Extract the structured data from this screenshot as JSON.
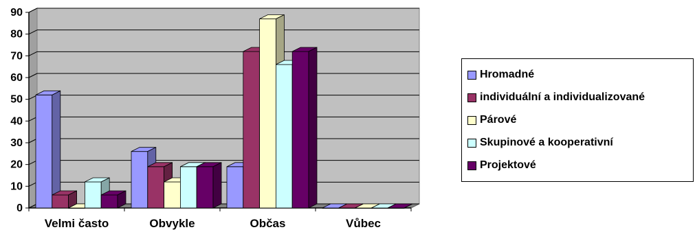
{
  "chart_data": {
    "type": "bar",
    "categories": [
      "Velmi často",
      "Obvykle",
      "Občas",
      "Vůbec"
    ],
    "series": [
      {
        "name": "Hromadné",
        "color": "#9999FF",
        "values": [
          52,
          26,
          19,
          0
        ]
      },
      {
        "name": "individuální a individualizované",
        "color": "#993366",
        "values": [
          6,
          19,
          72,
          0
        ]
      },
      {
        "name": "Párové",
        "color": "#FFFFCC",
        "values": [
          0,
          12,
          87,
          0
        ]
      },
      {
        "name": "Skupinové a kooperativní",
        "color": "#CCFFFF",
        "values": [
          12,
          19,
          66,
          0
        ]
      },
      {
        "name": "Projektové",
        "color": "#660066",
        "values": [
          6,
          19,
          72,
          0
        ]
      }
    ],
    "ylim": [
      0,
      90
    ],
    "yticks": [
      "0",
      "10",
      "20",
      "30",
      "40",
      "50",
      "60",
      "70",
      "80",
      "90"
    ],
    "grid": true,
    "three_d": true,
    "plot_background": "#C0C0C0",
    "legend_position": "right"
  }
}
